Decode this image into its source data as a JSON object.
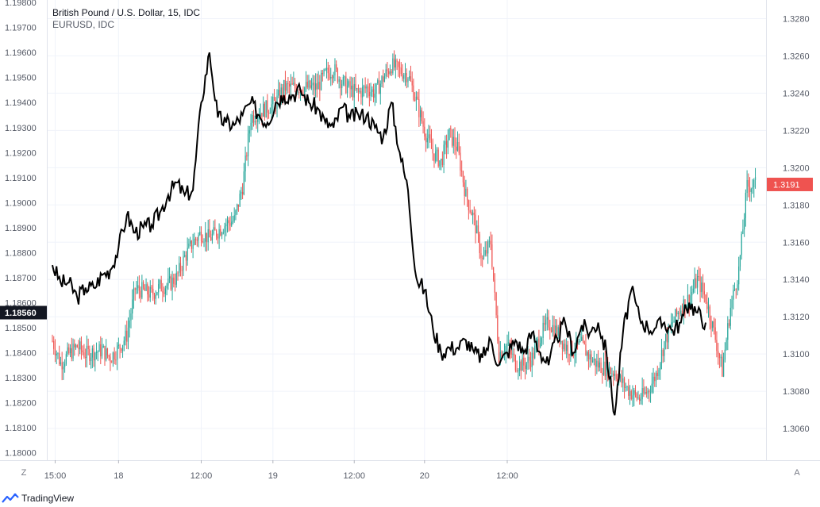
{
  "legend": {
    "main": "British Pound / U.S. Dollar, 15, IDC",
    "compare": "EURUSD, IDC"
  },
  "footer": {
    "brand": "TradingView",
    "left_button": "Z",
    "right_button": "A"
  },
  "colors": {
    "up": "#26a69a",
    "down": "#ef5350",
    "compare_line": "#000000",
    "grid": "#f0f3fa",
    "axis_text": "#555a66"
  },
  "chart_data": {
    "type": "candlestick",
    "title": "British Pound / U.S. Dollar, 15, IDC",
    "x_ticks": [
      "15:00",
      "18",
      "12:00",
      "19",
      "12:00",
      "20",
      "12:00"
    ],
    "left_axis": {
      "series": "EURUSD",
      "ticks": [
        "1.19800",
        "1.19700",
        "1.19600",
        "1.19500",
        "1.19400",
        "1.19300",
        "1.19200",
        "1.19100",
        "1.19000",
        "1.18900",
        "1.18800",
        "1.18700",
        "1.18600",
        "1.18500",
        "1.18400",
        "1.18300",
        "1.18200",
        "1.18100",
        "1.18000"
      ],
      "ylim": [
        1.1797,
        1.1981
      ],
      "last_price": "1.18560"
    },
    "right_axis": {
      "series": "GBPUSD",
      "ticks": [
        "1.3280",
        "1.3260",
        "1.3240",
        "1.3220",
        "1.3200",
        "1.3180",
        "1.3160",
        "1.3140",
        "1.3120",
        "1.3100",
        "1.3080",
        "1.3060"
      ],
      "ylim": [
        1.3043,
        1.329
      ],
      "last_price": "1.3191"
    },
    "series": [
      {
        "name": "British Pound / U.S. Dollar",
        "style": "candles",
        "close_path": [
          [
            0,
            1.3107
          ],
          [
            6,
            1.3095
          ],
          [
            12,
            1.31
          ],
          [
            18,
            1.3104
          ],
          [
            24,
            1.31
          ],
          [
            30,
            1.3101
          ],
          [
            36,
            1.3102
          ],
          [
            42,
            1.3098
          ],
          [
            48,
            1.3103
          ],
          [
            54,
            1.311
          ],
          [
            60,
            1.3135
          ],
          [
            66,
            1.3134
          ],
          [
            72,
            1.3132
          ],
          [
            78,
            1.3136
          ],
          [
            84,
            1.3137
          ],
          [
            90,
            1.3141
          ],
          [
            96,
            1.3152
          ],
          [
            102,
            1.316
          ],
          [
            108,
            1.3165
          ],
          [
            114,
            1.3162
          ],
          [
            120,
            1.3166
          ],
          [
            126,
            1.317
          ],
          [
            132,
            1.3172
          ],
          [
            138,
            1.319
          ],
          [
            144,
            1.3227
          ],
          [
            150,
            1.323
          ],
          [
            156,
            1.3232
          ],
          [
            162,
            1.3235
          ],
          [
            168,
            1.3243
          ],
          [
            174,
            1.3243
          ],
          [
            180,
            1.3243
          ],
          [
            186,
            1.3243
          ],
          [
            192,
            1.3243
          ],
          [
            198,
            1.325
          ],
          [
            204,
            1.3253
          ],
          [
            210,
            1.3246
          ],
          [
            216,
            1.3242
          ],
          [
            222,
            1.324
          ],
          [
            228,
            1.3243
          ],
          [
            234,
            1.324
          ],
          [
            240,
            1.3248
          ],
          [
            246,
            1.3255
          ],
          [
            252,
            1.3252
          ],
          [
            258,
            1.325
          ],
          [
            264,
            1.3236
          ],
          [
            270,
            1.322
          ],
          [
            276,
            1.3208
          ],
          [
            282,
            1.3203
          ],
          [
            288,
            1.3218
          ],
          [
            294,
            1.321
          ],
          [
            300,
            1.3185
          ],
          [
            306,
            1.3172
          ],
          [
            312,
            1.315
          ],
          [
            318,
            1.316
          ],
          [
            324,
            1.31
          ],
          [
            330,
            1.3105
          ],
          [
            336,
            1.3095
          ],
          [
            342,
            1.3094
          ],
          [
            348,
            1.3098
          ],
          [
            354,
            1.311
          ],
          [
            360,
            1.3117
          ],
          [
            366,
            1.3112
          ],
          [
            372,
            1.3104
          ],
          [
            378,
            1.3102
          ],
          [
            384,
            1.3105
          ],
          [
            390,
            1.3098
          ],
          [
            396,
            1.3094
          ],
          [
            402,
            1.3092
          ],
          [
            408,
            1.309
          ],
          [
            414,
            1.3084
          ],
          [
            420,
            1.3079
          ],
          [
            426,
            1.3076
          ],
          [
            432,
            1.308
          ],
          [
            438,
            1.3089
          ],
          [
            444,
            1.3106
          ],
          [
            450,
            1.3117
          ],
          [
            456,
            1.3125
          ],
          [
            462,
            1.313
          ],
          [
            468,
            1.314
          ],
          [
            474,
            1.313
          ],
          [
            480,
            1.3112
          ],
          [
            486,
            1.3091
          ],
          [
            492,
            1.3125
          ],
          [
            498,
            1.3145
          ],
          [
            504,
            1.319
          ],
          [
            510,
            1.3191
          ]
        ]
      },
      {
        "name": "EURUSD",
        "style": "line",
        "values": [
          [
            0,
            1.1875
          ],
          [
            6,
            1.1868
          ],
          [
            12,
            1.1868
          ],
          [
            18,
            1.1862
          ],
          [
            24,
            1.1866
          ],
          [
            30,
            1.1866
          ],
          [
            36,
            1.1871
          ],
          [
            42,
            1.1873
          ],
          [
            48,
            1.1882
          ],
          [
            54,
            1.1895
          ],
          [
            60,
            1.1888
          ],
          [
            66,
            1.189
          ],
          [
            72,
            1.1891
          ],
          [
            78,
            1.1896
          ],
          [
            84,
            1.1903
          ],
          [
            90,
            1.1908
          ],
          [
            96,
            1.1903
          ],
          [
            102,
            1.1905
          ],
          [
            108,
            1.194
          ],
          [
            114,
            1.196
          ],
          [
            120,
            1.1934
          ],
          [
            126,
            1.1932
          ],
          [
            132,
            1.1931
          ],
          [
            138,
            1.1935
          ],
          [
            144,
            1.194
          ],
          [
            150,
            1.1935
          ],
          [
            156,
            1.1932
          ],
          [
            162,
            1.194
          ],
          [
            168,
            1.1943
          ],
          [
            174,
            1.1943
          ],
          [
            180,
            1.1945
          ],
          [
            186,
            1.194
          ],
          [
            192,
            1.1938
          ],
          [
            198,
            1.1932
          ],
          [
            204,
            1.193
          ],
          [
            210,
            1.1938
          ],
          [
            216,
            1.1934
          ],
          [
            222,
            1.1935
          ],
          [
            228,
            1.1935
          ],
          [
            234,
            1.193
          ],
          [
            240,
            1.1926
          ],
          [
            246,
            1.194
          ],
          [
            252,
            1.192
          ],
          [
            258,
            1.1905
          ],
          [
            264,
            1.187
          ],
          [
            270,
            1.1865
          ],
          [
            276,
            1.185
          ],
          [
            282,
            1.184
          ],
          [
            288,
            1.1842
          ],
          [
            294,
            1.1842
          ],
          [
            300,
            1.1845
          ],
          [
            306,
            1.184
          ],
          [
            312,
            1.1838
          ],
          [
            318,
            1.1845
          ],
          [
            324,
            1.1835
          ],
          [
            330,
            1.184
          ],
          [
            336,
            1.1845
          ],
          [
            342,
            1.184
          ],
          [
            348,
            1.1848
          ],
          [
            354,
            1.184
          ],
          [
            360,
            1.1835
          ],
          [
            366,
            1.1846
          ],
          [
            372,
            1.1852
          ],
          [
            378,
            1.184
          ],
          [
            384,
            1.1851
          ],
          [
            390,
            1.1848
          ],
          [
            396,
            1.1852
          ],
          [
            402,
            1.184
          ],
          [
            408,
            1.1815
          ],
          [
            414,
            1.1848
          ],
          [
            420,
            1.1865
          ],
          [
            426,
            1.1854
          ],
          [
            432,
            1.185
          ],
          [
            438,
            1.185
          ],
          [
            444,
            1.1852
          ],
          [
            450,
            1.1849
          ],
          [
            456,
            1.1852
          ],
          [
            462,
            1.186
          ],
          [
            468,
            1.1856
          ],
          [
            474,
            1.1852
          ]
        ]
      }
    ],
    "xlim": [
      0,
      512
    ],
    "grid": true
  }
}
